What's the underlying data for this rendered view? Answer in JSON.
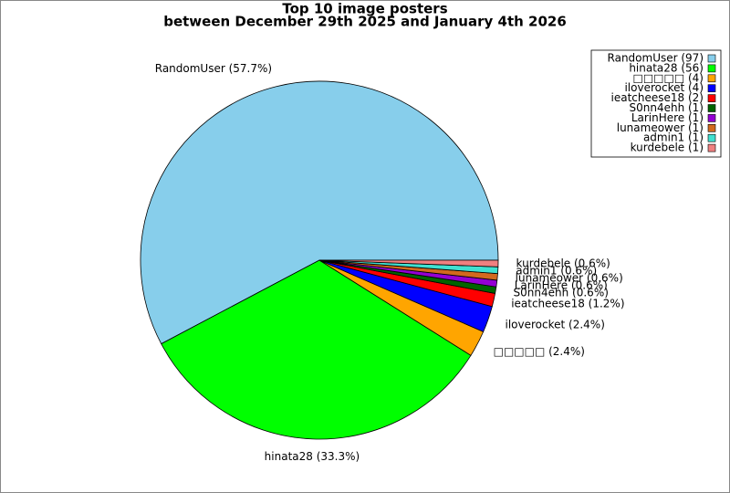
{
  "chart_data": {
    "type": "pie",
    "title": "Top 10 image posters",
    "subtitle": "between December 29th 2025 and January 4th 2026",
    "labels": [
      "RandomUser (97)",
      "hinata28 (56)",
      "□□□□□ (4)",
      "iloverocket (4)",
      "ieatcheese18 (2)",
      "S0nn4ehh (1)",
      "LarinHere (1)",
      "lunameower (1)",
      "admin1 (1)",
      "kurdebele (1)"
    ],
    "values": [
      97,
      56,
      4,
      4,
      2,
      1,
      1,
      1,
      1,
      1
    ],
    "value_labels": [
      "RandomUser (57.7%)",
      "hinata28 (33.3%)",
      "□□□□□ (2.4%)",
      "iloverocket (2.4%)",
      "ieatcheese18 (1.2%)",
      "S0nn4ehh (0.6%)",
      "LarinHere (0.6%)",
      "lunameower (0.6%)",
      "admin1 (0.6%)",
      "kurdebele (0.6%)"
    ],
    "colors": [
      "#87ceeb",
      "#00ff00",
      "#ffa500",
      "#0000ff",
      "#ff0000",
      "#006400",
      "#9400d3",
      "#d2691e",
      "#40e0d0",
      "#f08080"
    ],
    "legend": "upper right"
  }
}
